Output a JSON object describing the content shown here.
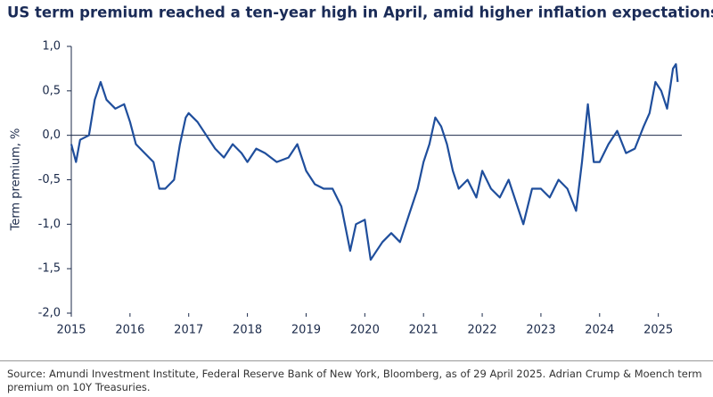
{
  "chart_data": {
    "type": "line",
    "title": "US term premium reached a ten-year high in April, amid higher inflation expectations",
    "ylabel": "Term premium, %",
    "source": "Source: Amundi Investment Institute, Federal Reserve Bank of New York, Bloomberg, as of 29 April 2025. Adrian Crump & Moench term premium on 10Y Treasuries.",
    "color": "#1f4e9c",
    "x": [
      2015.0,
      2015.08,
      2015.15,
      2015.3,
      2015.4,
      2015.5,
      2015.6,
      2015.75,
      2015.9,
      2016.0,
      2016.1,
      2016.25,
      2016.4,
      2016.5,
      2016.6,
      2016.75,
      2016.85,
      2016.95,
      2017.0,
      2017.15,
      2017.3,
      2017.45,
      2017.6,
      2017.75,
      2017.9,
      2018.0,
      2018.15,
      2018.3,
      2018.5,
      2018.7,
      2018.85,
      2019.0,
      2019.15,
      2019.3,
      2019.45,
      2019.6,
      2019.75,
      2019.85,
      2020.0,
      2020.1,
      2020.2,
      2020.3,
      2020.45,
      2020.6,
      2020.75,
      2020.9,
      2021.0,
      2021.1,
      2021.2,
      2021.3,
      2021.4,
      2021.5,
      2021.6,
      2021.75,
      2021.9,
      2022.0,
      2022.15,
      2022.3,
      2022.45,
      2022.6,
      2022.7,
      2022.85,
      2023.0,
      2023.15,
      2023.3,
      2023.45,
      2023.6,
      2023.7,
      2023.8,
      2023.9,
      2024.0,
      2024.15,
      2024.3,
      2024.45,
      2024.6,
      2024.75,
      2024.85,
      2024.95,
      2025.05,
      2025.15,
      2025.25,
      2025.3,
      2025.33
    ],
    "values": [
      -0.1,
      -0.3,
      -0.05,
      0.0,
      0.4,
      0.6,
      0.4,
      0.3,
      0.35,
      0.15,
      -0.1,
      -0.2,
      -0.3,
      -0.6,
      -0.6,
      -0.5,
      -0.1,
      0.2,
      0.25,
      0.15,
      0.0,
      -0.15,
      -0.25,
      -0.1,
      -0.2,
      -0.3,
      -0.15,
      -0.2,
      -0.3,
      -0.25,
      -0.1,
      -0.4,
      -0.55,
      -0.6,
      -0.6,
      -0.8,
      -1.3,
      -1.0,
      -0.95,
      -1.4,
      -1.3,
      -1.2,
      -1.1,
      -1.2,
      -0.9,
      -0.6,
      -0.3,
      -0.1,
      0.2,
      0.1,
      -0.1,
      -0.4,
      -0.6,
      -0.5,
      -0.7,
      -0.4,
      -0.6,
      -0.7,
      -0.5,
      -0.8,
      -1.0,
      -0.6,
      -0.6,
      -0.7,
      -0.5,
      -0.6,
      -0.85,
      -0.3,
      0.35,
      -0.3,
      -0.3,
      -0.1,
      0.05,
      -0.2,
      -0.15,
      0.1,
      0.25,
      0.6,
      0.5,
      0.3,
      0.75,
      0.8,
      0.6
    ],
    "xlim": [
      2015,
      2025.4
    ],
    "xticks": [
      2015,
      2016,
      2017,
      2018,
      2019,
      2020,
      2021,
      2022,
      2023,
      2024,
      2025
    ],
    "ylim": [
      -2,
      1
    ],
    "yticks": [
      {
        "value": -2,
        "label": "-2,0"
      },
      {
        "value": -1.5,
        "label": "-1,5"
      },
      {
        "value": -1,
        "label": "-1,0"
      },
      {
        "value": -0.5,
        "label": "-0,5"
      },
      {
        "value": 0,
        "label": "0,0"
      },
      {
        "value": 0.5,
        "label": "0,5"
      },
      {
        "value": 1,
        "label": "1,0"
      }
    ]
  }
}
